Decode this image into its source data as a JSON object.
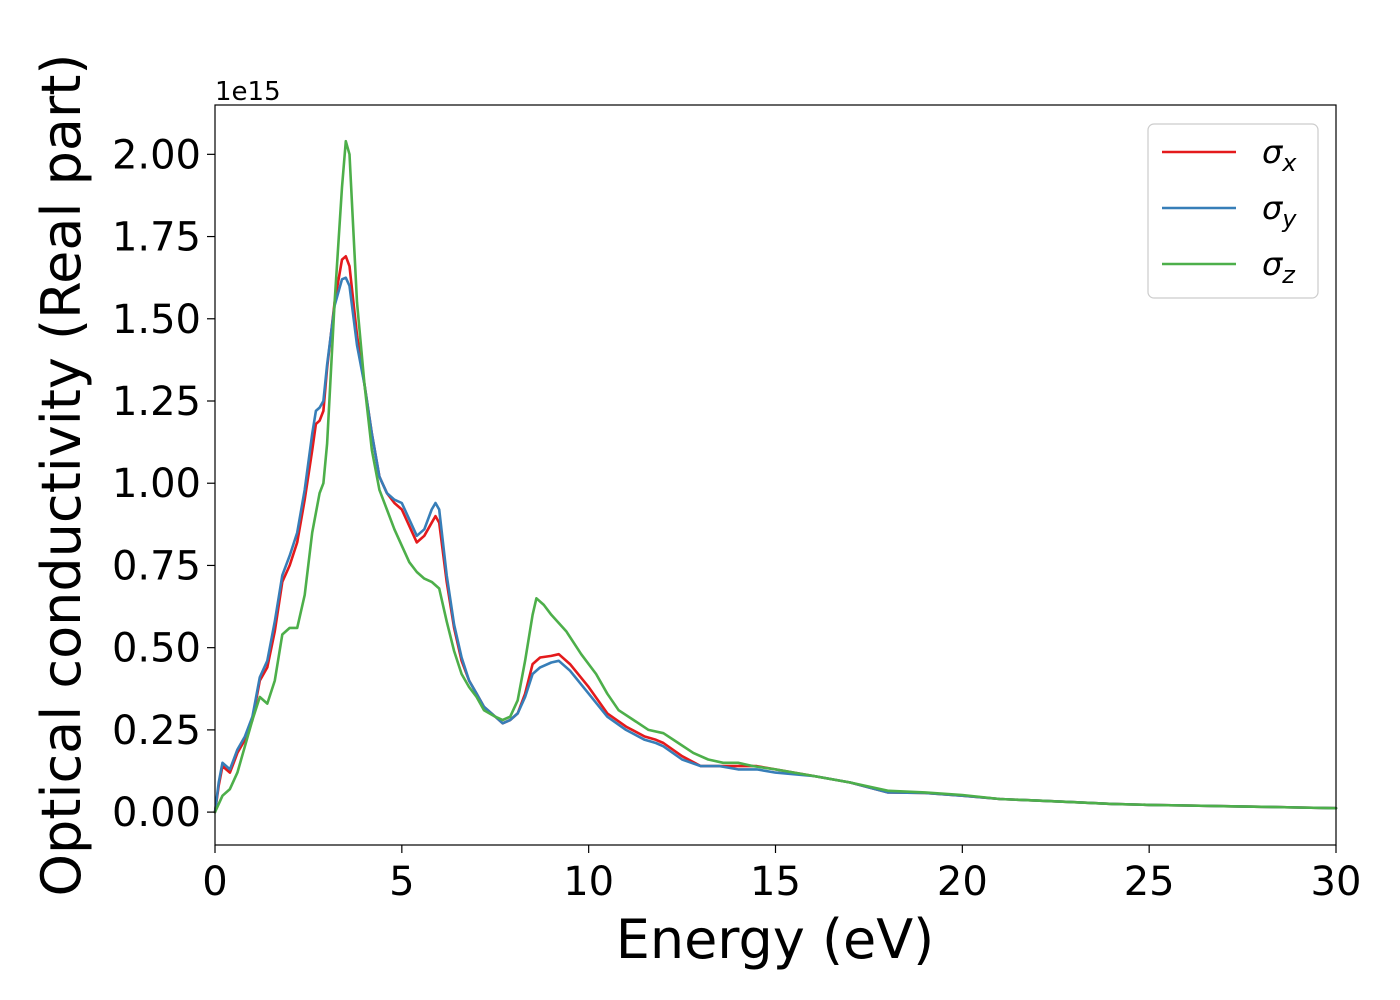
{
  "chart_data": {
    "type": "line",
    "title": "",
    "xlabel": "Energy (eV)",
    "ylabel": "Optical conductivity (Real part)",
    "y_offset_text": "1e15",
    "y_scale_factor": 1000000000000000.0,
    "xlim": [
      0,
      30
    ],
    "ylim": [
      -0.1,
      2.15
    ],
    "x_ticks": [
      0,
      5,
      10,
      15,
      20,
      25,
      30
    ],
    "x_tick_labels": [
      "0",
      "5",
      "10",
      "15",
      "20",
      "25",
      "30"
    ],
    "y_ticks": [
      0.0,
      0.25,
      0.5,
      0.75,
      1.0,
      1.25,
      1.5,
      1.75,
      2.0
    ],
    "y_tick_labels": [
      "0.00",
      "0.25",
      "0.50",
      "0.75",
      "1.00",
      "1.25",
      "1.50",
      "1.75",
      "2.00"
    ],
    "grid": false,
    "legend_position": "top-right",
    "series": [
      {
        "name": "σx",
        "legend_base": "σ",
        "legend_sub": "x",
        "color": "#e41a1c",
        "points": [
          [
            0,
            0.0
          ],
          [
            0.1,
            0.08
          ],
          [
            0.2,
            0.14
          ],
          [
            0.3,
            0.13
          ],
          [
            0.4,
            0.12
          ],
          [
            0.5,
            0.15
          ],
          [
            0.6,
            0.18
          ],
          [
            0.8,
            0.22
          ],
          [
            1.0,
            0.28
          ],
          [
            1.2,
            0.4
          ],
          [
            1.4,
            0.44
          ],
          [
            1.6,
            0.55
          ],
          [
            1.8,
            0.7
          ],
          [
            2.0,
            0.75
          ],
          [
            2.2,
            0.82
          ],
          [
            2.4,
            0.95
          ],
          [
            2.6,
            1.1
          ],
          [
            2.7,
            1.18
          ],
          [
            2.8,
            1.19
          ],
          [
            2.9,
            1.22
          ],
          [
            3.0,
            1.35
          ],
          [
            3.2,
            1.55
          ],
          [
            3.4,
            1.68
          ],
          [
            3.5,
            1.69
          ],
          [
            3.6,
            1.66
          ],
          [
            3.8,
            1.45
          ],
          [
            4.0,
            1.3
          ],
          [
            4.2,
            1.15
          ],
          [
            4.4,
            1.02
          ],
          [
            4.6,
            0.97
          ],
          [
            4.8,
            0.94
          ],
          [
            5.0,
            0.92
          ],
          [
            5.2,
            0.87
          ],
          [
            5.4,
            0.82
          ],
          [
            5.6,
            0.84
          ],
          [
            5.8,
            0.88
          ],
          [
            5.9,
            0.9
          ],
          [
            6.0,
            0.88
          ],
          [
            6.2,
            0.7
          ],
          [
            6.4,
            0.56
          ],
          [
            6.6,
            0.46
          ],
          [
            6.8,
            0.4
          ],
          [
            7.0,
            0.36
          ],
          [
            7.2,
            0.32
          ],
          [
            7.5,
            0.29
          ],
          [
            7.7,
            0.27
          ],
          [
            7.9,
            0.28
          ],
          [
            8.1,
            0.3
          ],
          [
            8.3,
            0.36
          ],
          [
            8.5,
            0.45
          ],
          [
            8.7,
            0.47
          ],
          [
            9.0,
            0.475
          ],
          [
            9.2,
            0.48
          ],
          [
            9.5,
            0.45
          ],
          [
            10.0,
            0.38
          ],
          [
            10.5,
            0.3
          ],
          [
            11.0,
            0.26
          ],
          [
            11.5,
            0.23
          ],
          [
            11.8,
            0.22
          ],
          [
            12.0,
            0.21
          ],
          [
            12.5,
            0.17
          ],
          [
            13.0,
            0.14
          ],
          [
            13.5,
            0.14
          ],
          [
            14.0,
            0.14
          ],
          [
            14.5,
            0.14
          ],
          [
            15.0,
            0.13
          ],
          [
            16.0,
            0.11
          ],
          [
            17.0,
            0.09
          ],
          [
            18.0,
            0.06
          ],
          [
            19.0,
            0.058
          ],
          [
            20.0,
            0.05
          ],
          [
            21.0,
            0.04
          ],
          [
            22.0,
            0.035
          ],
          [
            23.0,
            0.03
          ],
          [
            24.0,
            0.025
          ],
          [
            25.0,
            0.022
          ],
          [
            26.0,
            0.02
          ],
          [
            27.0,
            0.018
          ],
          [
            28.0,
            0.016
          ],
          [
            29.0,
            0.014
          ],
          [
            30.0,
            0.012
          ]
        ]
      },
      {
        "name": "σy",
        "legend_base": "σ",
        "legend_sub": "y",
        "color": "#377eb8",
        "points": [
          [
            0,
            0.0
          ],
          [
            0.1,
            0.09
          ],
          [
            0.2,
            0.15
          ],
          [
            0.3,
            0.14
          ],
          [
            0.4,
            0.13
          ],
          [
            0.5,
            0.16
          ],
          [
            0.6,
            0.19
          ],
          [
            0.8,
            0.23
          ],
          [
            1.0,
            0.29
          ],
          [
            1.2,
            0.41
          ],
          [
            1.4,
            0.46
          ],
          [
            1.6,
            0.58
          ],
          [
            1.8,
            0.72
          ],
          [
            2.0,
            0.78
          ],
          [
            2.2,
            0.85
          ],
          [
            2.4,
            0.98
          ],
          [
            2.6,
            1.15
          ],
          [
            2.7,
            1.22
          ],
          [
            2.8,
            1.23
          ],
          [
            2.9,
            1.25
          ],
          [
            3.0,
            1.36
          ],
          [
            3.2,
            1.54
          ],
          [
            3.4,
            1.62
          ],
          [
            3.5,
            1.625
          ],
          [
            3.6,
            1.6
          ],
          [
            3.8,
            1.42
          ],
          [
            4.0,
            1.3
          ],
          [
            4.2,
            1.15
          ],
          [
            4.4,
            1.02
          ],
          [
            4.6,
            0.97
          ],
          [
            4.8,
            0.95
          ],
          [
            5.0,
            0.94
          ],
          [
            5.2,
            0.89
          ],
          [
            5.4,
            0.84
          ],
          [
            5.6,
            0.86
          ],
          [
            5.8,
            0.92
          ],
          [
            5.9,
            0.94
          ],
          [
            6.0,
            0.92
          ],
          [
            6.2,
            0.72
          ],
          [
            6.4,
            0.57
          ],
          [
            6.6,
            0.47
          ],
          [
            6.8,
            0.4
          ],
          [
            7.0,
            0.36
          ],
          [
            7.2,
            0.32
          ],
          [
            7.5,
            0.29
          ],
          [
            7.7,
            0.27
          ],
          [
            7.9,
            0.28
          ],
          [
            8.1,
            0.3
          ],
          [
            8.3,
            0.35
          ],
          [
            8.5,
            0.42
          ],
          [
            8.7,
            0.44
          ],
          [
            9.0,
            0.455
          ],
          [
            9.2,
            0.46
          ],
          [
            9.5,
            0.43
          ],
          [
            10.0,
            0.36
          ],
          [
            10.5,
            0.29
          ],
          [
            11.0,
            0.25
          ],
          [
            11.5,
            0.22
          ],
          [
            11.8,
            0.21
          ],
          [
            12.0,
            0.2
          ],
          [
            12.5,
            0.16
          ],
          [
            13.0,
            0.14
          ],
          [
            13.5,
            0.14
          ],
          [
            14.0,
            0.13
          ],
          [
            14.5,
            0.13
          ],
          [
            15.0,
            0.12
          ],
          [
            16.0,
            0.11
          ],
          [
            17.0,
            0.09
          ],
          [
            18.0,
            0.06
          ],
          [
            19.0,
            0.058
          ],
          [
            20.0,
            0.05
          ],
          [
            21.0,
            0.04
          ],
          [
            22.0,
            0.035
          ],
          [
            23.0,
            0.03
          ],
          [
            24.0,
            0.025
          ],
          [
            25.0,
            0.022
          ],
          [
            26.0,
            0.02
          ],
          [
            27.0,
            0.018
          ],
          [
            28.0,
            0.016
          ],
          [
            29.0,
            0.014
          ],
          [
            30.0,
            0.012
          ]
        ]
      },
      {
        "name": "σz",
        "legend_base": "σ",
        "legend_sub": "z",
        "color": "#4daf4a",
        "points": [
          [
            0,
            0.0
          ],
          [
            0.2,
            0.05
          ],
          [
            0.4,
            0.07
          ],
          [
            0.6,
            0.12
          ],
          [
            0.8,
            0.2
          ],
          [
            1.0,
            0.28
          ],
          [
            1.2,
            0.35
          ],
          [
            1.4,
            0.33
          ],
          [
            1.6,
            0.4
          ],
          [
            1.8,
            0.54
          ],
          [
            2.0,
            0.56
          ],
          [
            2.2,
            0.56
          ],
          [
            2.4,
            0.66
          ],
          [
            2.6,
            0.85
          ],
          [
            2.8,
            0.97
          ],
          [
            2.9,
            1.0
          ],
          [
            3.0,
            1.12
          ],
          [
            3.2,
            1.55
          ],
          [
            3.4,
            1.9
          ],
          [
            3.5,
            2.04
          ],
          [
            3.6,
            2.0
          ],
          [
            3.8,
            1.55
          ],
          [
            4.0,
            1.3
          ],
          [
            4.2,
            1.1
          ],
          [
            4.4,
            0.98
          ],
          [
            4.6,
            0.92
          ],
          [
            4.8,
            0.86
          ],
          [
            5.0,
            0.81
          ],
          [
            5.2,
            0.76
          ],
          [
            5.4,
            0.73
          ],
          [
            5.6,
            0.71
          ],
          [
            5.8,
            0.7
          ],
          [
            6.0,
            0.68
          ],
          [
            6.2,
            0.58
          ],
          [
            6.4,
            0.49
          ],
          [
            6.6,
            0.42
          ],
          [
            6.8,
            0.38
          ],
          [
            7.0,
            0.35
          ],
          [
            7.2,
            0.31
          ],
          [
            7.5,
            0.29
          ],
          [
            7.7,
            0.28
          ],
          [
            7.9,
            0.29
          ],
          [
            8.1,
            0.34
          ],
          [
            8.3,
            0.46
          ],
          [
            8.5,
            0.6
          ],
          [
            8.6,
            0.65
          ],
          [
            8.8,
            0.63
          ],
          [
            9.0,
            0.6
          ],
          [
            9.4,
            0.55
          ],
          [
            9.8,
            0.48
          ],
          [
            10.2,
            0.42
          ],
          [
            10.5,
            0.36
          ],
          [
            10.8,
            0.31
          ],
          [
            11.2,
            0.28
          ],
          [
            11.6,
            0.25
          ],
          [
            12.0,
            0.24
          ],
          [
            12.4,
            0.21
          ],
          [
            12.8,
            0.18
          ],
          [
            13.2,
            0.16
          ],
          [
            13.6,
            0.15
          ],
          [
            14.0,
            0.15
          ],
          [
            14.4,
            0.14
          ],
          [
            15.0,
            0.13
          ],
          [
            16.0,
            0.11
          ],
          [
            17.0,
            0.09
          ],
          [
            18.0,
            0.065
          ],
          [
            19.0,
            0.06
          ],
          [
            20.0,
            0.052
          ],
          [
            21.0,
            0.04
          ],
          [
            22.0,
            0.035
          ],
          [
            23.0,
            0.03
          ],
          [
            24.0,
            0.025
          ],
          [
            25.0,
            0.022
          ],
          [
            26.0,
            0.02
          ],
          [
            27.0,
            0.018
          ],
          [
            28.0,
            0.016
          ],
          [
            29.0,
            0.014
          ],
          [
            30.0,
            0.012
          ]
        ]
      }
    ]
  }
}
